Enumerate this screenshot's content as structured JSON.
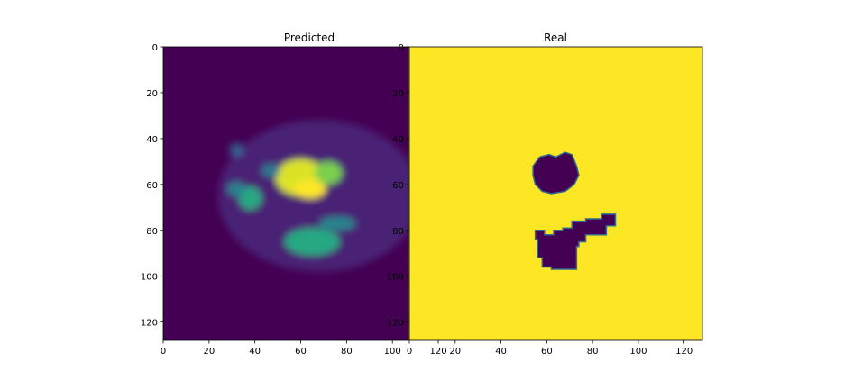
{
  "chart_data": [
    {
      "type": "heatmap",
      "title": "Predicted",
      "colormap": "viridis",
      "background_color": "#440154",
      "xticks": [
        0,
        20,
        40,
        60,
        80,
        100,
        120
      ],
      "yticks": [
        0,
        20,
        40,
        60,
        80,
        100,
        120
      ],
      "xlim": [
        0,
        128
      ],
      "ylim": [
        128,
        0
      ],
      "blobs": [
        {
          "cx": 68,
          "cy": 65,
          "rx": 44,
          "ry": 33,
          "value": 0.1
        },
        {
          "cx": 60,
          "cy": 57,
          "rx": 11,
          "ry": 8,
          "value": 0.95
        },
        {
          "cx": 64,
          "cy": 62,
          "rx": 7,
          "ry": 4,
          "value": 1.0
        },
        {
          "cx": 72,
          "cy": 55,
          "rx": 6,
          "ry": 5,
          "value": 0.8
        },
        {
          "cx": 38,
          "cy": 66,
          "rx": 5,
          "ry": 5,
          "value": 0.6
        },
        {
          "cx": 32,
          "cy": 62,
          "rx": 4,
          "ry": 3,
          "value": 0.45
        },
        {
          "cx": 47,
          "cy": 54,
          "rx": 4,
          "ry": 3,
          "value": 0.4
        },
        {
          "cx": 65,
          "cy": 85,
          "rx": 12,
          "ry": 6,
          "value": 0.6
        },
        {
          "cx": 76,
          "cy": 77,
          "rx": 8,
          "ry": 3,
          "value": 0.45
        },
        {
          "cx": 32,
          "cy": 45,
          "rx": 3,
          "ry": 3,
          "value": 0.3
        }
      ]
    },
    {
      "type": "heatmap",
      "title": "Real",
      "colormap": "viridis",
      "background_color": "#fde725",
      "foreground_color": "#440154",
      "edge_color": "#31688e",
      "xticks": [
        0,
        20,
        40,
        60,
        80,
        100,
        120
      ],
      "yticks": [
        0,
        20,
        40,
        60,
        80,
        100,
        120
      ],
      "xlim": [
        0,
        128
      ],
      "ylim": [
        128,
        0
      ],
      "regions": [
        {
          "points": [
            [
              54,
              52
            ],
            [
              57,
              48
            ],
            [
              61,
              47
            ],
            [
              64,
              48
            ],
            [
              68,
              46
            ],
            [
              71,
              47
            ],
            [
              73,
              52
            ],
            [
              74,
              56
            ],
            [
              72,
              60
            ],
            [
              68,
              63
            ],
            [
              62,
              64
            ],
            [
              58,
              63
            ],
            [
              55,
              60
            ],
            [
              54,
              56
            ]
          ]
        },
        {
          "points": [
            [
              55,
              80
            ],
            [
              59,
              80
            ],
            [
              59,
              82
            ],
            [
              63,
              82
            ],
            [
              63,
              80
            ],
            [
              67,
              80
            ],
            [
              67,
              79
            ],
            [
              71,
              79
            ],
            [
              71,
              76
            ],
            [
              77,
              76
            ],
            [
              77,
              75
            ],
            [
              84,
              75
            ],
            [
              84,
              73
            ],
            [
              90,
              73
            ],
            [
              90,
              78
            ],
            [
              86,
              78
            ],
            [
              86,
              82
            ],
            [
              77,
              82
            ],
            [
              77,
              85
            ],
            [
              74,
              85
            ],
            [
              74,
              87
            ],
            [
              73,
              87
            ],
            [
              73,
              97
            ],
            [
              62,
              97
            ],
            [
              62,
              96
            ],
            [
              58,
              96
            ],
            [
              58,
              92
            ],
            [
              56,
              92
            ],
            [
              56,
              84
            ],
            [
              55,
              84
            ]
          ]
        }
      ]
    }
  ]
}
